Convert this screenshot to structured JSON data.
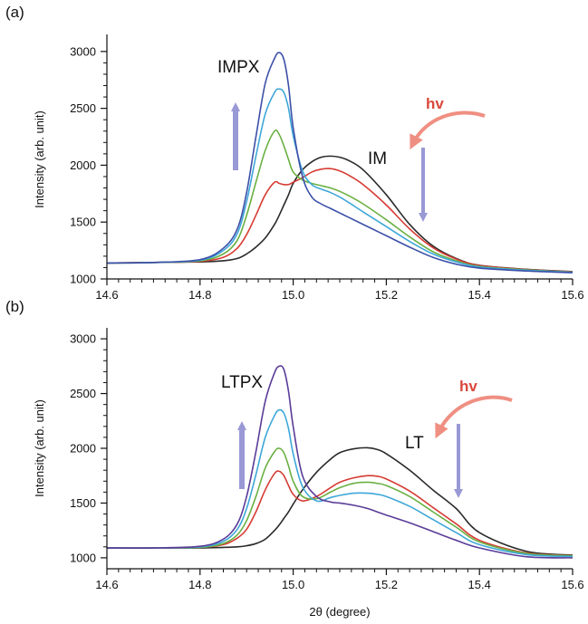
{
  "chart_data": [
    {
      "type": "line",
      "panel_label": "(a)",
      "xlabel": "",
      "ylabel": "Intensity (arb. unit)",
      "xlim": [
        14.6,
        15.6
      ],
      "ylim": [
        1000,
        3150
      ],
      "xticks": [
        "14.6",
        "14.8",
        "15.0",
        "15.2",
        "15.4",
        "15.6"
      ],
      "yticks": [
        "1000",
        "1500",
        "2000",
        "2500",
        "3000"
      ],
      "peak_label": "IMPX",
      "phase_label": "IM",
      "hv_label": "hv",
      "x": [
        14.6,
        14.7,
        14.8,
        14.85,
        14.88,
        14.9,
        14.92,
        14.94,
        14.96,
        14.97,
        14.98,
        14.99,
        15.0,
        15.02,
        15.04,
        15.06,
        15.08,
        15.1,
        15.12,
        15.15,
        15.2,
        15.25,
        15.3,
        15.35,
        15.4,
        15.5,
        15.6
      ],
      "series": [
        {
          "color": "#2a2a2a",
          "values": [
            1140,
            1145,
            1150,
            1160,
            1180,
            1220,
            1280,
            1360,
            1480,
            1560,
            1650,
            1740,
            1840,
            1960,
            2030,
            2070,
            2080,
            2070,
            2040,
            1960,
            1740,
            1480,
            1290,
            1180,
            1120,
            1085,
            1065
          ]
        },
        {
          "color": "#d63b33",
          "values": [
            1140,
            1145,
            1155,
            1190,
            1270,
            1390,
            1560,
            1740,
            1850,
            1840,
            1830,
            1830,
            1850,
            1890,
            1940,
            1965,
            1970,
            1950,
            1910,
            1830,
            1650,
            1440,
            1275,
            1175,
            1118,
            1083,
            1063
          ]
        },
        {
          "color": "#6ab043",
          "values": [
            1140,
            1145,
            1160,
            1220,
            1340,
            1560,
            1850,
            2130,
            2300,
            2270,
            2170,
            2050,
            1940,
            1870,
            1840,
            1820,
            1800,
            1770,
            1730,
            1660,
            1520,
            1370,
            1240,
            1160,
            1110,
            1080,
            1060
          ]
        },
        {
          "color": "#3ea7d8",
          "values": [
            1140,
            1145,
            1165,
            1250,
            1400,
            1680,
            2080,
            2450,
            2640,
            2670,
            2640,
            2500,
            2260,
            1950,
            1830,
            1790,
            1760,
            1720,
            1670,
            1590,
            1460,
            1330,
            1220,
            1150,
            1105,
            1076,
            1058
          ]
        },
        {
          "color": "#3b4fa8",
          "values": [
            1140,
            1145,
            1170,
            1270,
            1440,
            1760,
            2250,
            2720,
            2940,
            2990,
            2930,
            2700,
            2330,
            1900,
            1720,
            1660,
            1620,
            1580,
            1540,
            1480,
            1380,
            1280,
            1190,
            1130,
            1095,
            1070,
            1055
          ]
        }
      ]
    },
    {
      "type": "line",
      "panel_label": "(b)",
      "xlabel": "2θ (degree)",
      "ylabel": "Intensity (arb. unit)",
      "xlim": [
        14.6,
        15.6
      ],
      "ylim": [
        900,
        3100
      ],
      "xticks": [
        "14.6",
        "14.8",
        "15.0",
        "15.2",
        "15.4",
        "15.6"
      ],
      "yticks": [
        "1000",
        "1500",
        "2000",
        "2500",
        "3000"
      ],
      "peak_label": "LTPX",
      "phase_label": "LT",
      "hv_label": "hv",
      "x": [
        14.6,
        14.7,
        14.8,
        14.85,
        14.88,
        14.9,
        14.92,
        14.94,
        14.96,
        14.97,
        14.98,
        14.99,
        15.0,
        15.02,
        15.05,
        15.08,
        15.1,
        15.13,
        15.16,
        15.18,
        15.2,
        15.25,
        15.3,
        15.35,
        15.4,
        15.5,
        15.6
      ],
      "series": [
        {
          "color": "#2a2a2a",
          "values": [
            1090,
            1090,
            1090,
            1095,
            1100,
            1110,
            1130,
            1170,
            1250,
            1300,
            1360,
            1420,
            1490,
            1620,
            1780,
            1900,
            1960,
            1995,
            2005,
            1990,
            1950,
            1800,
            1620,
            1450,
            1230,
            1060,
            1025
          ]
        },
        {
          "color": "#d63b33",
          "values": [
            1090,
            1090,
            1095,
            1120,
            1180,
            1260,
            1420,
            1620,
            1770,
            1790,
            1750,
            1660,
            1580,
            1520,
            1560,
            1640,
            1690,
            1730,
            1750,
            1745,
            1720,
            1610,
            1460,
            1310,
            1160,
            1045,
            1020
          ]
        },
        {
          "color": "#6ab043",
          "values": [
            1090,
            1090,
            1095,
            1130,
            1210,
            1340,
            1560,
            1820,
            1970,
            2000,
            1960,
            1840,
            1700,
            1560,
            1540,
            1600,
            1640,
            1680,
            1690,
            1680,
            1660,
            1560,
            1420,
            1280,
            1145,
            1040,
            1018
          ]
        },
        {
          "color": "#3ea7d8",
          "values": [
            1090,
            1090,
            1100,
            1150,
            1260,
            1450,
            1760,
            2100,
            2300,
            2350,
            2320,
            2180,
            1950,
            1650,
            1520,
            1550,
            1570,
            1590,
            1590,
            1580,
            1560,
            1470,
            1350,
            1230,
            1120,
            1030,
            1012
          ]
        },
        {
          "color": "#5a3c98",
          "values": [
            1090,
            1090,
            1105,
            1170,
            1310,
            1560,
            1970,
            2430,
            2690,
            2750,
            2720,
            2520,
            2200,
            1750,
            1560,
            1510,
            1500,
            1480,
            1450,
            1420,
            1390,
            1320,
            1240,
            1160,
            1090,
            1010,
            1000
          ]
        }
      ]
    }
  ]
}
